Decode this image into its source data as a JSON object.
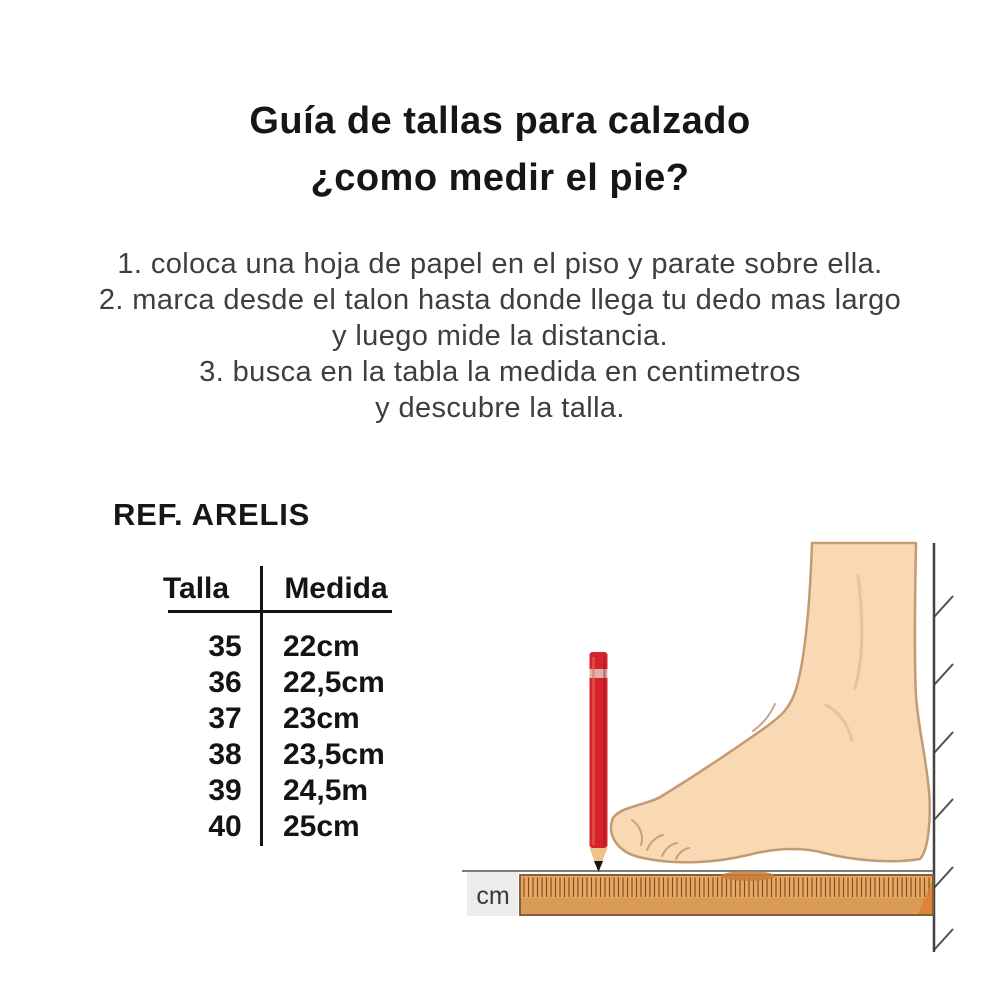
{
  "title": {
    "line1": "Guía de tallas para calzado",
    "line2": "¿como medir el pie?"
  },
  "instructions": {
    "lines": [
      "1. coloca una hoja de papel en el piso y parate sobre ella.",
      "2. marca desde el talon hasta donde llega tu dedo mas largo",
      "y luego mide la distancia.",
      "3. busca en la tabla la medida en centimetros",
      "y descubre la talla."
    ]
  },
  "reference": {
    "label": "REF. ARELIS"
  },
  "size_table": {
    "headers": {
      "talla": "Talla",
      "medida": "Medida"
    },
    "rows": [
      {
        "talla": "35",
        "medida": "22cm"
      },
      {
        "talla": "36",
        "medida": "22,5cm"
      },
      {
        "talla": "37",
        "medida": "23cm"
      },
      {
        "talla": "38",
        "medida": "23,5cm"
      },
      {
        "talla": "39",
        "medida": "24,5m"
      },
      {
        "talla": "40",
        "medida": "25cm"
      }
    ]
  },
  "illustration": {
    "ruler_unit_label": "cm",
    "colors": {
      "skin": "#f8d9b4",
      "skin_outline": "#c49a72",
      "pencil_red": "#d5232b",
      "pencil_band": "#dcb3ae",
      "ruler_fill": "#d89b58",
      "ruler_ticks": "#6e4f28",
      "ruler_border": "#85603a",
      "wall_line": "#424242",
      "floor_line": "#7d7d7d",
      "cm_box": "#ececec"
    }
  }
}
